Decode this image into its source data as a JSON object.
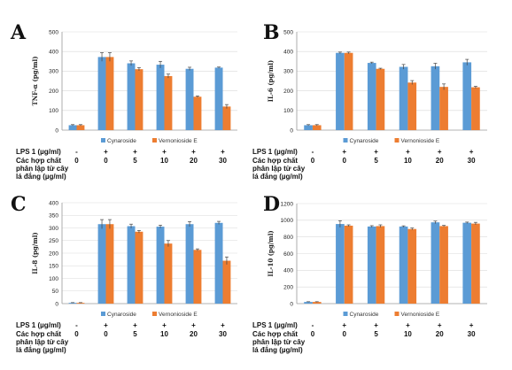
{
  "colors": {
    "cynaroside": "#5b9bd5",
    "vernonioside": "#ed7d31"
  },
  "table_labels": {
    "lps": "LPS 1 (µg/ml)",
    "compounds": [
      "Các hợp chất",
      "phân lập từ cây",
      "lá đắng (µg/ml)"
    ]
  },
  "chart_data": [
    {
      "panel": "A",
      "type": "bar",
      "ylabel": "TNF-α (pg/ml)",
      "ylim": [
        0,
        500
      ],
      "yticks": [
        "0",
        "100",
        "200",
        "300",
        "400",
        "500"
      ],
      "grid": true,
      "legend_position": "bottom",
      "lps": [
        "-",
        "+",
        "+",
        "+",
        "+",
        "+"
      ],
      "concentration": [
        "0",
        "0",
        "5",
        "10",
        "20",
        "30"
      ],
      "series": [
        {
          "name": "Cynaroside",
          "values": [
            25,
            372,
            340,
            333,
            312,
            318
          ],
          "errors": [
            3,
            22,
            12,
            17,
            8,
            3
          ]
        },
        {
          "name": "Vernonioside E",
          "values": [
            25,
            372,
            310,
            275,
            170,
            120
          ],
          "errors": [
            3,
            22,
            8,
            10,
            4,
            10
          ]
        }
      ]
    },
    {
      "panel": "B",
      "type": "bar",
      "ylabel": "IL-6 (pg/ml)",
      "ylim": [
        0,
        500
      ],
      "yticks": [
        "0",
        "100",
        "200",
        "300",
        "400",
        "500"
      ],
      "grid": true,
      "legend_position": "bottom",
      "lps": [
        "-",
        "+",
        "+",
        "+",
        "+",
        "+"
      ],
      "concentration": [
        "0",
        "0",
        "5",
        "10",
        "20",
        "30"
      ],
      "series": [
        {
          "name": "Cynaroside",
          "values": [
            25,
            393,
            342,
            322,
            325,
            345
          ],
          "errors": [
            3,
            4,
            4,
            12,
            15,
            15
          ]
        },
        {
          "name": "Vernonioside E",
          "values": [
            25,
            393,
            312,
            242,
            220,
            218
          ],
          "errors": [
            3,
            4,
            3,
            10,
            15,
            5
          ]
        }
      ]
    },
    {
      "panel": "C",
      "type": "bar",
      "ylabel": "IL-8 (pg/ml)",
      "ylim": [
        0,
        400
      ],
      "yticks": [
        "0",
        "50",
        "100",
        "150",
        "200",
        "250",
        "300",
        "350",
        "400"
      ],
      "grid": true,
      "legend_position": "bottom",
      "lps": [
        "-",
        "+",
        "+",
        "+",
        "+",
        "+"
      ],
      "concentration": [
        "0",
        "0",
        "5",
        "10",
        "20",
        "30"
      ],
      "series": [
        {
          "name": "Cynaroside",
          "values": [
            3,
            315,
            307,
            305,
            315,
            320
          ],
          "errors": [
            1,
            18,
            8,
            6,
            10,
            6
          ]
        },
        {
          "name": "Vernonioside E",
          "values": [
            3,
            315,
            285,
            238,
            213,
            170
          ],
          "errors": [
            1,
            18,
            5,
            12,
            4,
            15
          ]
        }
      ]
    },
    {
      "panel": "D",
      "type": "bar",
      "ylabel": "IL-10 (pg/ml)",
      "ylim": [
        0,
        1200
      ],
      "yticks": [
        "0",
        "200",
        "400",
        "600",
        "800",
        "1000",
        "1200"
      ],
      "grid": true,
      "legend_position": "bottom",
      "lps": [
        "-",
        "+",
        "+",
        "+",
        "+",
        "+"
      ],
      "concentration": [
        "0",
        "0",
        "5",
        "10",
        "20",
        "30"
      ],
      "series": [
        {
          "name": "Cynaroside",
          "values": [
            20,
            955,
            925,
            925,
            975,
            970
          ],
          "errors": [
            3,
            40,
            10,
            8,
            15,
            8
          ]
        },
        {
          "name": "Vernonioside E",
          "values": [
            20,
            935,
            930,
            895,
            930,
            960
          ],
          "errors": [
            3,
            10,
            15,
            12,
            8,
            15
          ]
        }
      ]
    }
  ]
}
